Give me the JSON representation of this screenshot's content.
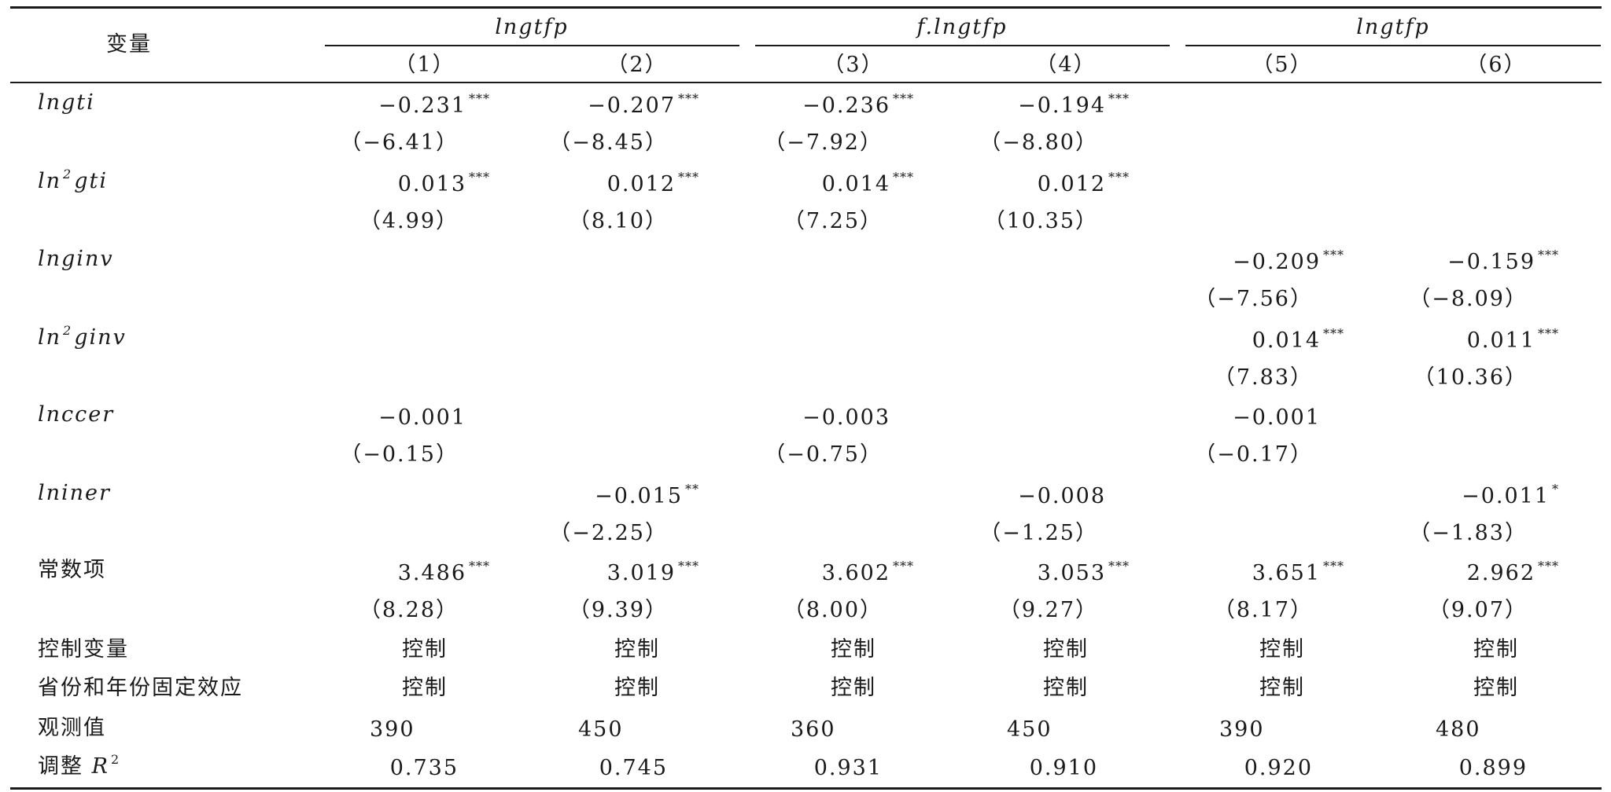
{
  "table": {
    "row_header": "变量",
    "groups": [
      {
        "label": "lngtfp"
      },
      {
        "label": "f.lngtfp"
      },
      {
        "label": "lngtfp"
      }
    ],
    "columns": [
      "（1）",
      "（2）",
      "（3）",
      "（4）",
      "（5）",
      "（6）"
    ],
    "rows": [
      {
        "var": "lngti",
        "italic": true,
        "coef": [
          [
            "−0.231",
            "***"
          ],
          [
            "−0.207",
            "***"
          ],
          [
            "−0.236",
            "***"
          ],
          [
            "−0.194",
            "***"
          ],
          [
            "",
            ""
          ],
          [
            "",
            ""
          ]
        ],
        "tval": [
          "（−6.41）",
          "（−8.45）",
          "（−7.92）",
          "（−8.80）",
          "",
          ""
        ]
      },
      {
        "var_pre": "ln",
        "var_sup": "2",
        "var_post": "gti",
        "italic": true,
        "coef": [
          [
            "0.013",
            "***"
          ],
          [
            "0.012",
            "***"
          ],
          [
            "0.014",
            "***"
          ],
          [
            "0.012",
            "***"
          ],
          [
            "",
            ""
          ],
          [
            "",
            ""
          ]
        ],
        "tval": [
          "（4.99）",
          "（8.10）",
          "（7.25）",
          "（10.35）",
          "",
          ""
        ]
      },
      {
        "var": "lnginv",
        "italic": true,
        "coef": [
          [
            "",
            ""
          ],
          [
            "",
            ""
          ],
          [
            "",
            ""
          ],
          [
            "",
            ""
          ],
          [
            "−0.209",
            "***"
          ],
          [
            "−0.159",
            "***"
          ]
        ],
        "tval": [
          "",
          "",
          "",
          "",
          "（−7.56）",
          "（−8.09）"
        ]
      },
      {
        "var_pre": "ln",
        "var_sup": "2",
        "var_post": "ginv",
        "italic": true,
        "coef": [
          [
            "",
            ""
          ],
          [
            "",
            ""
          ],
          [
            "",
            ""
          ],
          [
            "",
            ""
          ],
          [
            "0.014",
            "***"
          ],
          [
            "0.011",
            "***"
          ]
        ],
        "tval": [
          "",
          "",
          "",
          "",
          "（7.83）",
          "（10.36）"
        ]
      },
      {
        "var": "lnccer",
        "italic": true,
        "coef": [
          [
            "−0.001",
            ""
          ],
          [
            "",
            ""
          ],
          [
            "−0.003",
            ""
          ],
          [
            "",
            ""
          ],
          [
            "−0.001",
            ""
          ],
          [
            "",
            ""
          ]
        ],
        "tval": [
          "（−0.15）",
          "",
          "（−0.75）",
          "",
          "（−0.17）",
          ""
        ]
      },
      {
        "var": "lniner",
        "italic": true,
        "coef": [
          [
            "",
            ""
          ],
          [
            "−0.015",
            "**"
          ],
          [
            "",
            ""
          ],
          [
            "−0.008",
            ""
          ],
          [
            "",
            ""
          ],
          [
            "−0.011",
            "*"
          ]
        ],
        "tval": [
          "",
          "（−2.25）",
          "",
          "（−1.25）",
          "",
          "（−1.83）"
        ]
      },
      {
        "var": "常数项",
        "italic": false,
        "coef": [
          [
            "3.486",
            "***"
          ],
          [
            "3.019",
            "***"
          ],
          [
            "3.602",
            "***"
          ],
          [
            "3.053",
            "***"
          ],
          [
            "3.651",
            "***"
          ],
          [
            "2.962",
            "***"
          ]
        ],
        "tval": [
          "（8.28）",
          "（9.39）",
          "（8.00）",
          "（9.27）",
          "（8.17）",
          "（9.07）"
        ]
      }
    ],
    "footer_rows": [
      {
        "label": "控制变量",
        "values": [
          "控制",
          "控制",
          "控制",
          "控制",
          "控制",
          "控制"
        ],
        "align": "center"
      },
      {
        "label": "省份和年份固定效应",
        "values": [
          "控制",
          "控制",
          "控制",
          "控制",
          "控制",
          "控制"
        ],
        "align": "center"
      },
      {
        "label": "观测值",
        "values": [
          "390",
          "450",
          "360",
          "450",
          "390",
          "480"
        ],
        "align": "left"
      },
      {
        "label_pre": "调整 ",
        "label_it": "R",
        "label_sup": "2",
        "values": [
          "0.735",
          "0.745",
          "0.931",
          "0.910",
          "0.920",
          "0.899"
        ],
        "align": "right"
      }
    ]
  }
}
